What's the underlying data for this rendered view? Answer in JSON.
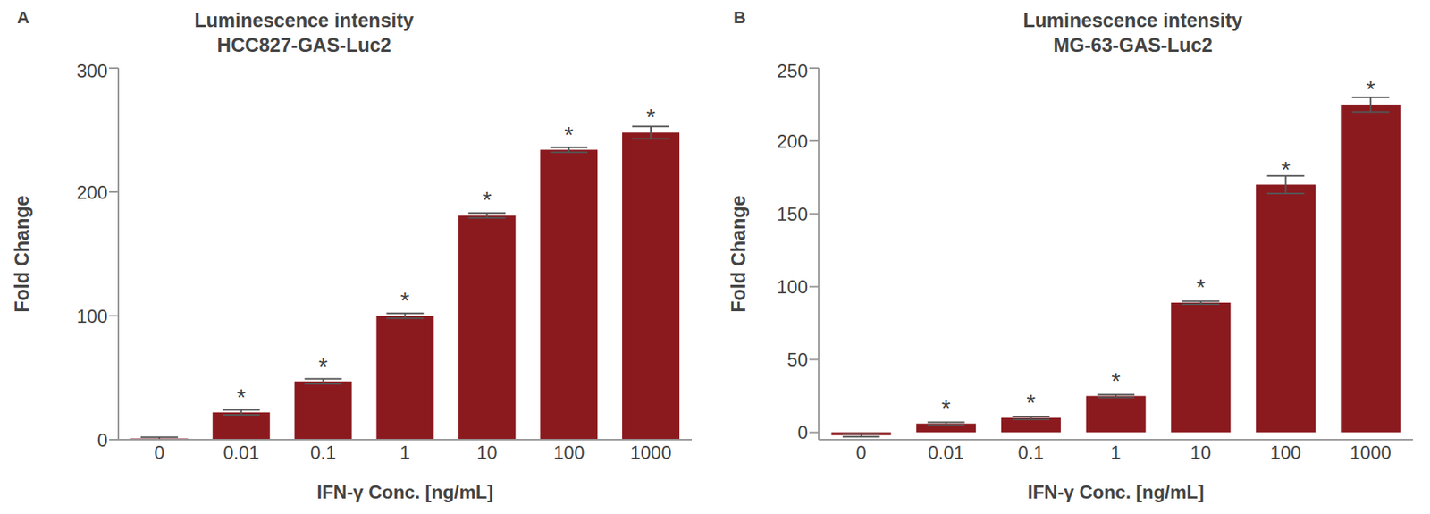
{
  "chart_data": [
    {
      "type": "bar",
      "panel": "A",
      "title": "Luminescence intensity",
      "subtitle": "HCC827-GAS-Luc2",
      "x_label": "IFN-γ Conc. [ng/mL]",
      "y_label": "Fold Change",
      "categories": [
        "0",
        "0.01",
        "0.1",
        "1",
        "10",
        "100",
        "1000"
      ],
      "values": [
        1,
        22,
        47,
        100,
        181,
        234,
        248
      ],
      "errors": [
        1,
        2,
        2,
        2,
        2,
        2,
        5
      ],
      "annotations": [
        null,
        "*",
        "*",
        "*",
        "*",
        "*",
        "*"
      ],
      "color": "#8b1a1f",
      "ylim": [
        0,
        300
      ],
      "yticks": [
        0,
        100,
        200,
        300
      ],
      "grid": false
    },
    {
      "type": "bar",
      "panel": "B",
      "title": "Luminescence intensity",
      "subtitle": "MG-63-GAS-Luc2",
      "x_label": "IFN-γ Conc. [ng/mL]",
      "y_label": "Fold Change",
      "categories": [
        "0",
        "0.01",
        "0.1",
        "1",
        "10",
        "100",
        "1000"
      ],
      "values": [
        -2,
        6,
        10,
        25,
        89,
        170,
        225
      ],
      "errors": [
        1,
        1,
        1,
        1,
        1,
        6,
        5
      ],
      "annotations": [
        null,
        "*",
        "*",
        "*",
        "*",
        "*",
        "*"
      ],
      "color": "#8b1a1f",
      "ylim": [
        -5,
        250
      ],
      "yticks": [
        0,
        50,
        100,
        150,
        200,
        250
      ],
      "grid": false
    }
  ]
}
